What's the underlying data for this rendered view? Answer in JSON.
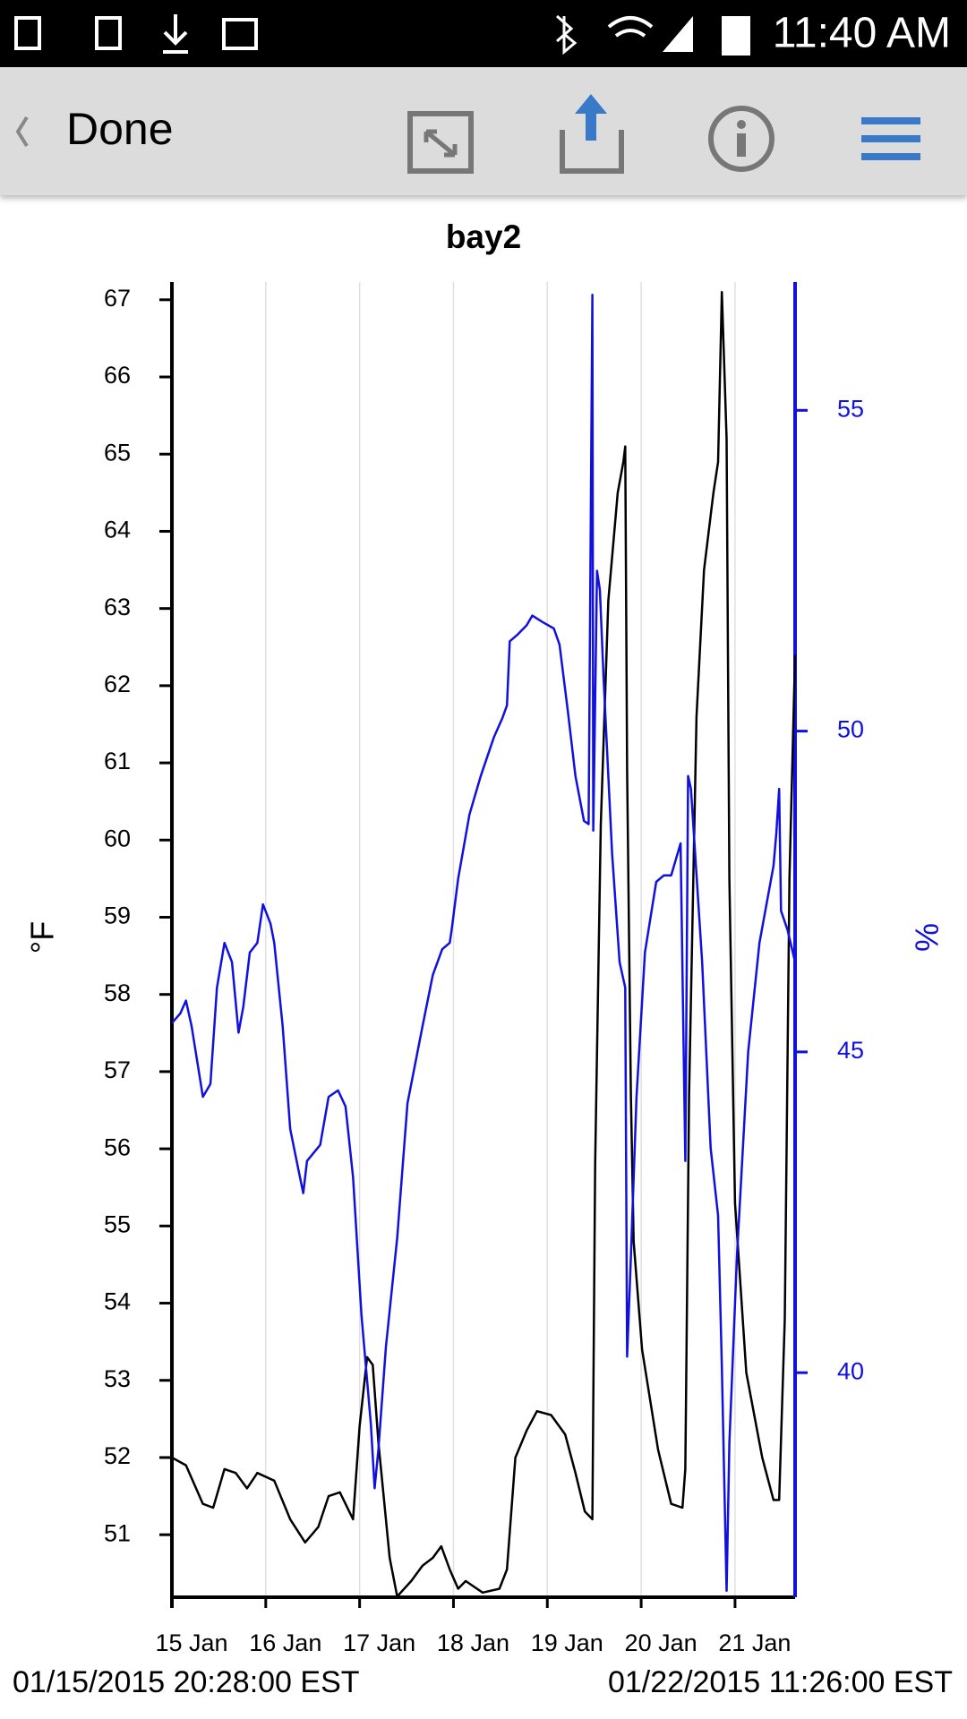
{
  "status_bar": {
    "time": "11:40 AM"
  },
  "toolbar": {
    "back": "Done"
  },
  "footer": {
    "start": "01/15/2015 20:28:00 EST",
    "end": "01/22/2015 11:26:00 EST"
  },
  "chart_data": {
    "type": "line",
    "title": "bay2",
    "ylabel": "°F",
    "y2label": "%",
    "xlim": [
      0,
      6.64
    ],
    "xticks": [
      {
        "value": 0,
        "label": "15 Jan"
      },
      {
        "value": 1,
        "label": "16 Jan"
      },
      {
        "value": 2,
        "label": "17 Jan"
      },
      {
        "value": 3,
        "label": "18 Jan"
      },
      {
        "value": 4,
        "label": "19 Jan"
      },
      {
        "value": 5,
        "label": "20 Jan"
      },
      {
        "value": 6,
        "label": "21 Jan"
      }
    ],
    "ylim": [
      50.19,
      67.23
    ],
    "yticks": [
      51,
      52,
      53,
      54,
      55,
      56,
      57,
      58,
      59,
      60,
      61,
      62,
      63,
      64,
      65,
      66,
      67
    ],
    "y2lim": [
      36.5,
      57.0
    ],
    "y2ticks": [
      40,
      45,
      50,
      55
    ],
    "grid": true,
    "series": [
      {
        "color": "#000000",
        "x": [
          0,
          0.15,
          0.33,
          0.44,
          0.56,
          0.68,
          0.8,
          0.91,
          1.09,
          1.26,
          1.42,
          1.56,
          1.67,
          1.79,
          1.93,
          2.0,
          2.08,
          2.14,
          2.2,
          2.32,
          2.4,
          2.55,
          2.67,
          2.78,
          2.87,
          2.96,
          3.05,
          3.13,
          3.31,
          3.49,
          3.57,
          3.66,
          3.78,
          3.89,
          4.04,
          4.19,
          4.3,
          4.4,
          4.48,
          4.51,
          4.57,
          4.65,
          4.75,
          4.81,
          4.83,
          4.85,
          4.89,
          4.92,
          5.01,
          5.18,
          5.32,
          5.44,
          5.47,
          5.51,
          5.59,
          5.67,
          5.77,
          5.82,
          5.86,
          5.91,
          5.94,
          6.0,
          6.12,
          6.29,
          6.41,
          6.47,
          6.53,
          6.58,
          6.64
        ],
        "values": [
          52.0,
          51.9,
          51.4,
          51.35,
          51.85,
          51.8,
          51.6,
          51.8,
          51.7,
          51.2,
          50.9,
          51.1,
          51.5,
          51.55,
          51.2,
          52.4,
          53.3,
          53.2,
          52.2,
          50.7,
          50.2,
          50.4,
          50.6,
          50.7,
          50.85,
          50.55,
          50.3,
          50.4,
          50.25,
          50.3,
          50.55,
          52.0,
          52.35,
          52.6,
          52.55,
          52.3,
          51.8,
          51.3,
          51.2,
          55.8,
          60.2,
          63.1,
          64.5,
          64.9,
          65.1,
          60.9,
          56.7,
          54.8,
          53.4,
          52.1,
          51.4,
          51.35,
          51.85,
          56.7,
          61.6,
          63.5,
          64.5,
          64.9,
          67.1,
          65.2,
          59.5,
          55.3,
          53.1,
          52.0,
          51.45,
          51.45,
          53.8,
          59.5,
          62.4
        ]
      },
      {
        "color": "#1010e0",
        "axis": "y2",
        "x": [
          0,
          0.09,
          0.15,
          0.21,
          0.33,
          0.41,
          0.48,
          0.56,
          0.64,
          0.71,
          0.76,
          0.83,
          0.91,
          0.97,
          1.05,
          1.09,
          1.18,
          1.26,
          1.35,
          1.4,
          1.44,
          1.58,
          1.67,
          1.77,
          1.85,
          1.93,
          2.02,
          2.12,
          2.16,
          2.2,
          2.28,
          2.4,
          2.51,
          2.67,
          2.78,
          2.88,
          2.96,
          2.98,
          3.05,
          3.17,
          3.29,
          3.43,
          3.52,
          3.57,
          3.6,
          3.68,
          3.78,
          3.84,
          3.95,
          4.07,
          4.13,
          4.22,
          4.3,
          4.39,
          4.44,
          4.48,
          4.49,
          4.53,
          4.56,
          4.6,
          4.69,
          4.77,
          4.83,
          4.85,
          4.89,
          4.95,
          5.04,
          5.16,
          5.24,
          5.32,
          5.42,
          5.47,
          5.5,
          5.53,
          5.65,
          5.74,
          5.82,
          5.86,
          5.91,
          5.94,
          6.02,
          6.14,
          6.26,
          6.41,
          6.44,
          6.47,
          6.49,
          6.56,
          6.64
        ],
        "values": [
          45.45,
          45.6,
          45.8,
          45.4,
          44.3,
          44.5,
          46.0,
          46.7,
          46.4,
          45.3,
          45.7,
          46.55,
          46.7,
          47.3,
          47.0,
          46.7,
          45.4,
          43.8,
          43.15,
          42.8,
          43.3,
          43.55,
          44.3,
          44.4,
          44.15,
          43.05,
          40.9,
          39.2,
          38.2,
          38.8,
          40.4,
          42.1,
          44.2,
          45.4,
          46.2,
          46.6,
          46.7,
          46.9,
          47.7,
          48.7,
          49.3,
          49.9,
          50.2,
          50.4,
          51.4,
          51.5,
          51.65,
          51.8,
          51.7,
          51.6,
          51.35,
          50.3,
          49.3,
          48.6,
          48.55,
          56.8,
          48.45,
          52.5,
          52.2,
          50.8,
          48.1,
          46.4,
          46.0,
          40.25,
          41.8,
          44.3,
          46.55,
          47.65,
          47.75,
          47.75,
          48.25,
          43.3,
          49.3,
          49.1,
          46.4,
          43.5,
          42.45,
          40.1,
          36.6,
          38.9,
          41.8,
          45.0,
          46.7,
          47.9,
          48.4,
          49.1,
          47.2,
          46.9,
          46.4
        ]
      }
    ]
  }
}
